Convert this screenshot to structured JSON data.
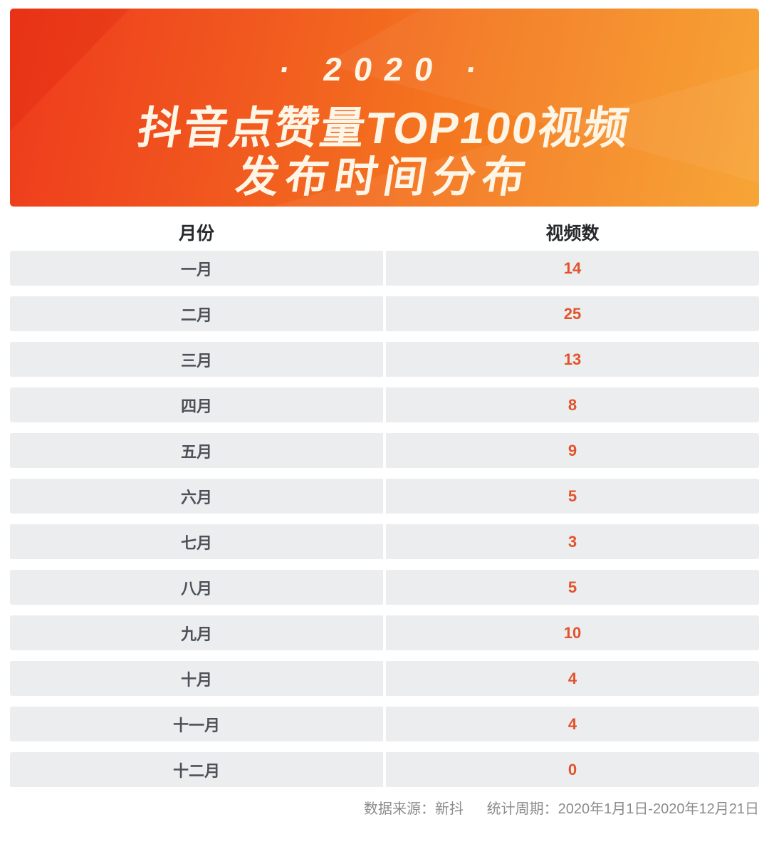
{
  "banner": {
    "year_label": "· 2020 ·",
    "title_line1": "抖音点赞量TOP100视频",
    "title_line2": "发布时间分布"
  },
  "table": {
    "columns": [
      "月份",
      "视频数"
    ],
    "rows": [
      {
        "month": "一月",
        "count": "14"
      },
      {
        "month": "二月",
        "count": "25"
      },
      {
        "month": "三月",
        "count": "13"
      },
      {
        "month": "四月",
        "count": "8"
      },
      {
        "month": "五月",
        "count": "9"
      },
      {
        "month": "六月",
        "count": "5"
      },
      {
        "month": "七月",
        "count": "3"
      },
      {
        "month": "八月",
        "count": "5"
      },
      {
        "month": "九月",
        "count": "10"
      },
      {
        "month": "十月",
        "count": "4"
      },
      {
        "month": "十一月",
        "count": "4"
      },
      {
        "month": "十二月",
        "count": "0"
      }
    ]
  },
  "footer": {
    "source_label": "数据来源：新抖",
    "period_label": "统计周期：2020年1月1日-2020年12月21日"
  },
  "colors": {
    "banner_gradient_start": "#ee3a1c",
    "banner_gradient_mid": "#f4781f",
    "banner_gradient_end": "#f7a02b",
    "banner_title_text": "#fdf6e7",
    "column_header_text": "#26282b",
    "month_text": "#4c5158",
    "count_accent": "#e2532b",
    "row_background": "#ecedef",
    "footer_text": "#8c8c8c"
  },
  "chart_data": {
    "type": "table",
    "title": "2020 抖音点赞量TOP100视频 发布时间分布",
    "columns": [
      "月份",
      "视频数"
    ],
    "categories": [
      "一月",
      "二月",
      "三月",
      "四月",
      "五月",
      "六月",
      "七月",
      "八月",
      "九月",
      "十月",
      "十一月",
      "十二月"
    ],
    "values": [
      14,
      25,
      13,
      8,
      9,
      5,
      3,
      5,
      10,
      4,
      4,
      0
    ],
    "source": "数据来源：新抖",
    "period": "统计周期：2020年1月1日-2020年12月21日"
  }
}
